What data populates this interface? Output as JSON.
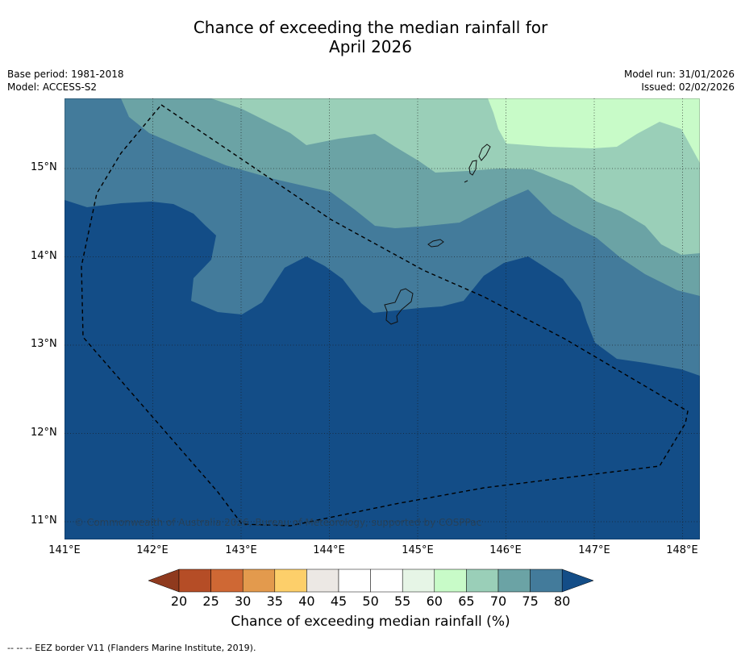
{
  "title_line1": "Chance of exceeding the median rainfall for",
  "title_line2": "April 2026",
  "meta_left": {
    "base_period": "Base period: 1981-2018",
    "model": "Model: ACCESS-S2"
  },
  "meta_right": {
    "model_run": "Model run: 31/01/2026",
    "issued": "Issued: 02/02/2026"
  },
  "map": {
    "lon_range": [
      141,
      148.2
    ],
    "lat_range": [
      10.8,
      15.8
    ],
    "lat_ticks": [
      "15°N",
      "14°N",
      "13°N",
      "12°N",
      "11°N"
    ],
    "lon_ticks": [
      "141°E",
      "142°E",
      "143°E",
      "144°E",
      "145°E",
      "146°E",
      "147°E",
      "148°E"
    ],
    "copyright": "© Commonwealth of Australia 2026, Bureau of Meteorology, supported by COSPPac",
    "islands": [
      "Guam",
      "Rota",
      "Tinian",
      "Saipan"
    ]
  },
  "legend": {
    "labels": [
      "20",
      "25",
      "30",
      "35",
      "40",
      "45",
      "50",
      "55",
      "60",
      "65",
      "70",
      "75",
      "80"
    ],
    "colors": [
      "#8f3a1e",
      "#b54d26",
      "#cf6834",
      "#e39a4d",
      "#fdcf6a",
      "#ece8e4",
      "#ffffff",
      "#ffffff",
      "#e6f5e6",
      "#c8fbc8",
      "#9acfb8",
      "#6ba3a5",
      "#437b9b",
      "#134d87"
    ],
    "title": "Chance of exceeding median rainfall (%)"
  },
  "footnote": "--  --  -- EEZ border V11 (Flanders Marine Institute, 2019)."
}
